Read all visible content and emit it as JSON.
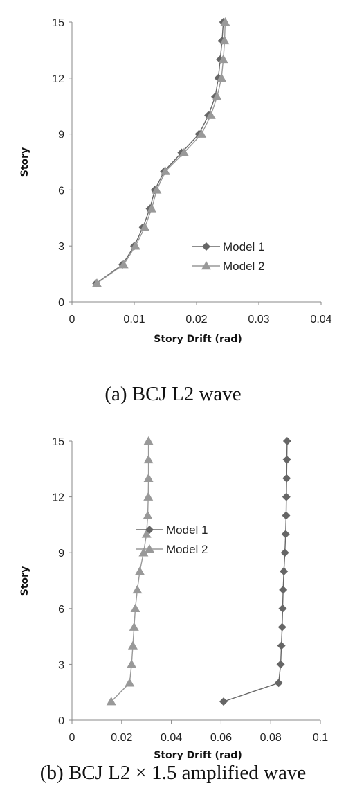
{
  "chart_data": [
    {
      "type": "line",
      "caption": "(a) BCJ L2 wave",
      "xlabel": "Story Drift (rad)",
      "ylabel": "Story",
      "xlim": [
        0,
        0.04
      ],
      "ylim": [
        0,
        15
      ],
      "xticks": [
        "0",
        "0.01",
        "0.02",
        "0.03",
        "0.04"
      ],
      "yticks": [
        "0",
        "3",
        "6",
        "9",
        "12",
        "15"
      ],
      "legend_position": "right-lower",
      "grid": false,
      "series": [
        {
          "name": "Model 1",
          "marker": "diamond",
          "color": "#666666",
          "x": [
            0.0039,
            0.0081,
            0.01,
            0.0114,
            0.0125,
            0.0133,
            0.0148,
            0.0176,
            0.0204,
            0.0219,
            0.023,
            0.0235,
            0.0238,
            0.0241,
            0.0243
          ],
          "y": [
            1,
            2,
            3,
            4,
            5,
            6,
            7,
            8,
            9,
            10,
            11,
            12,
            13,
            14,
            15
          ]
        },
        {
          "name": "Model 2",
          "marker": "triangle",
          "color": "#999999",
          "x": [
            0.004,
            0.0083,
            0.0102,
            0.0117,
            0.0128,
            0.0136,
            0.015,
            0.018,
            0.0208,
            0.0223,
            0.0233,
            0.024,
            0.0243,
            0.0245,
            0.0246
          ],
          "y": [
            1,
            2,
            3,
            4,
            5,
            6,
            7,
            8,
            9,
            10,
            11,
            12,
            13,
            14,
            15
          ]
        }
      ]
    },
    {
      "type": "line",
      "caption": "(b) BCJ L2 × 1.5 amplified wave",
      "xlabel": "Story Drift (rad)",
      "ylabel": "Story",
      "xlim": [
        0,
        0.1
      ],
      "ylim": [
        0,
        15
      ],
      "xticks": [
        "0",
        "0.02",
        "0.04",
        "0.06",
        "0.08",
        "0.1"
      ],
      "yticks": [
        "0",
        "3",
        "6",
        "9",
        "12",
        "15"
      ],
      "legend_position": "center",
      "grid": false,
      "series": [
        {
          "name": "Model 1",
          "marker": "diamond",
          "color": "#666666",
          "x": [
            0.061,
            0.0832,
            0.084,
            0.0843,
            0.0846,
            0.0848,
            0.085,
            0.0853,
            0.0857,
            0.086,
            0.0862,
            0.0863,
            0.0864,
            0.0865,
            0.0866
          ],
          "y": [
            1,
            2,
            3,
            4,
            5,
            6,
            7,
            8,
            9,
            10,
            11,
            12,
            13,
            14,
            15
          ]
        },
        {
          "name": "Model 2",
          "marker": "triangle",
          "color": "#999999",
          "x": [
            0.0158,
            0.0232,
            0.024,
            0.0245,
            0.025,
            0.0255,
            0.0263,
            0.0273,
            0.0288,
            0.03,
            0.0305,
            0.0307,
            0.0308,
            0.0308,
            0.0308
          ],
          "y": [
            1,
            2,
            3,
            4,
            5,
            6,
            7,
            8,
            9,
            10,
            11,
            12,
            13,
            14,
            15
          ]
        }
      ]
    }
  ]
}
